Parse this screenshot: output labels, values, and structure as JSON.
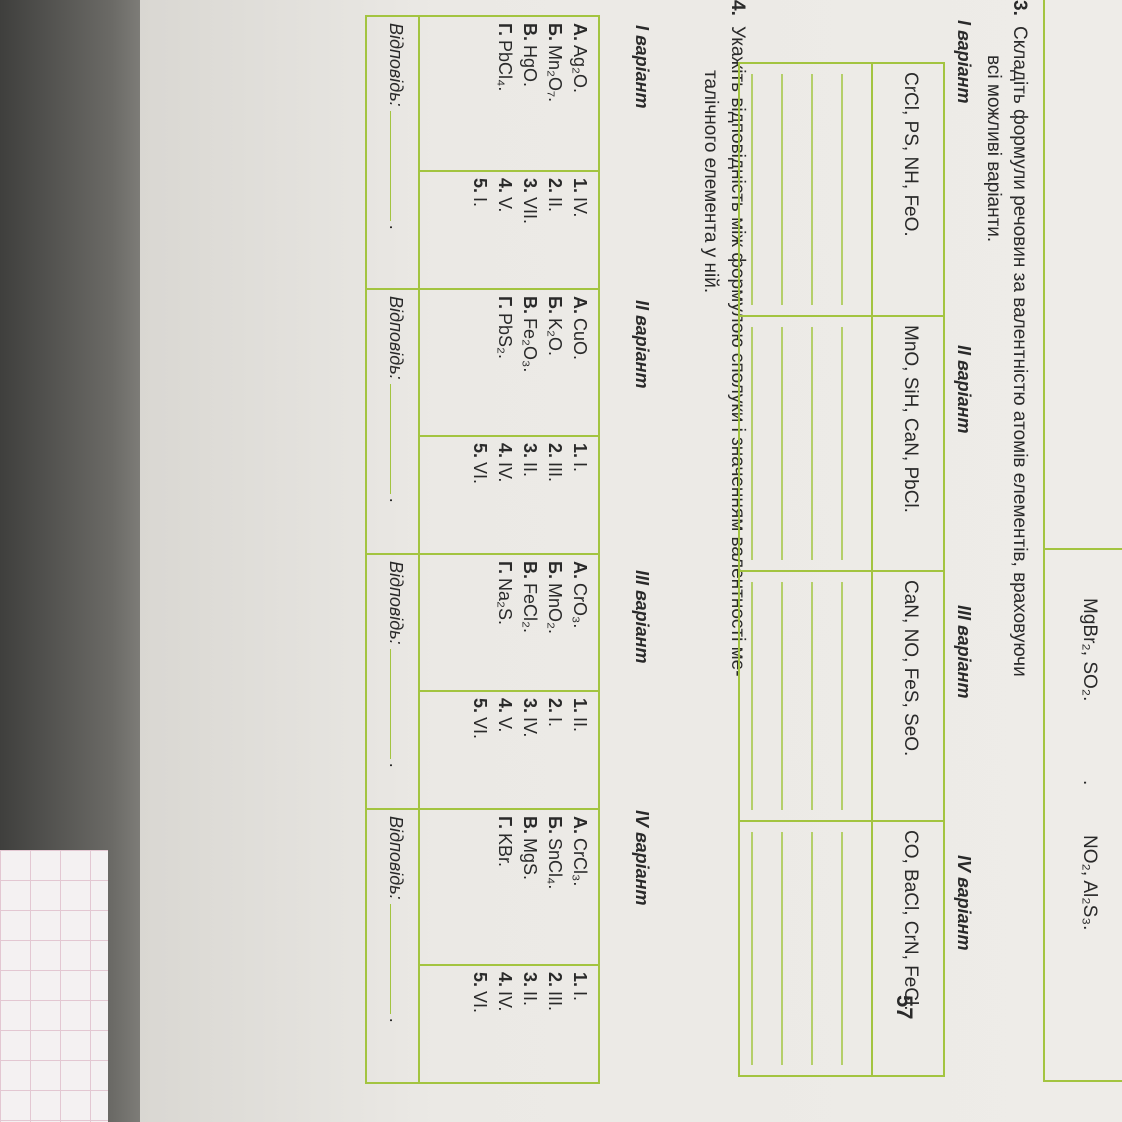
{
  "page_number": "57",
  "prev_task": {
    "answers": [
      "MgBr₂, SO₂.",
      "NO₂, Al₂S₃."
    ],
    "separator": "."
  },
  "task3": {
    "number": "3.",
    "line1": "Складіть формули речовин за валентністю атомів елементів, враховуючи",
    "line2": "всі можливі варіанти.",
    "variants": [
      {
        "label": "I варіант",
        "elements": "CrCl, PS, NH, FeO."
      },
      {
        "label": "II варіант",
        "elements": "MnO, SiH, CaN, PbCl."
      },
      {
        "label": "III варіант",
        "elements": "CaN, NO, FeS, SeO."
      },
      {
        "label": "IV варіант",
        "elements": "CO, BaCl, CrN, FeCl."
      }
    ]
  },
  "task4": {
    "number": "4.",
    "line1": "Укажіть відповідність між формулою сполуки і значенням валентності ме-",
    "line2": "талічного елемента у ній.",
    "answer_label": "Відповідь:",
    "variants": [
      {
        "label": "I варіант",
        "formulas": [
          {
            "letter": "А.",
            "formula": "Ag₂O."
          },
          {
            "letter": "Б.",
            "formula": "Mn₂O₇."
          },
          {
            "letter": "В.",
            "formula": "HgO."
          },
          {
            "letter": "Г.",
            "formula": "PbCl₄."
          }
        ],
        "valences": [
          {
            "num": "1.",
            "val": "IV."
          },
          {
            "num": "2.",
            "val": "II."
          },
          {
            "num": "3.",
            "val": "VII."
          },
          {
            "num": "4.",
            "val": "V."
          },
          {
            "num": "5.",
            "val": "I."
          }
        ]
      },
      {
        "label": "II варіант",
        "formulas": [
          {
            "letter": "А.",
            "formula": "CuO."
          },
          {
            "letter": "Б.",
            "formula": "K₂O."
          },
          {
            "letter": "В.",
            "formula": "Fe₂O₃."
          },
          {
            "letter": "Г.",
            "formula": "PbS₂."
          }
        ],
        "valences": [
          {
            "num": "1.",
            "val": "I."
          },
          {
            "num": "2.",
            "val": "III."
          },
          {
            "num": "3.",
            "val": "II."
          },
          {
            "num": "4.",
            "val": "IV."
          },
          {
            "num": "5.",
            "val": "VI."
          }
        ]
      },
      {
        "label": "III варіант",
        "formulas": [
          {
            "letter": "А.",
            "formula": "CrO₃."
          },
          {
            "letter": "Б.",
            "formula": "MnO₂."
          },
          {
            "letter": "В.",
            "formula": "FeCl₂."
          },
          {
            "letter": "Г.",
            "formula": "Na₂S."
          }
        ],
        "valences": [
          {
            "num": "1.",
            "val": "II."
          },
          {
            "num": "2.",
            "val": "I."
          },
          {
            "num": "3.",
            "val": "IV."
          },
          {
            "num": "4.",
            "val": "V."
          },
          {
            "num": "5.",
            "val": "VI."
          }
        ]
      },
      {
        "label": "IV варіант",
        "formulas": [
          {
            "letter": "А.",
            "formula": "CrCl₃."
          },
          {
            "letter": "Б.",
            "formula": "SnCl₄."
          },
          {
            "letter": "В.",
            "formula": "MgS."
          },
          {
            "letter": "Г.",
            "formula": "KBr."
          }
        ],
        "valences": [
          {
            "num": "1.",
            "val": "I."
          },
          {
            "num": "2.",
            "val": "III."
          },
          {
            "num": "3.",
            "val": "II."
          },
          {
            "num": "4.",
            "val": "IV."
          },
          {
            "num": "5.",
            "val": "VI."
          }
        ]
      }
    ]
  },
  "colors": {
    "table_border": "#a3c440",
    "page": "#ebe9e5"
  }
}
